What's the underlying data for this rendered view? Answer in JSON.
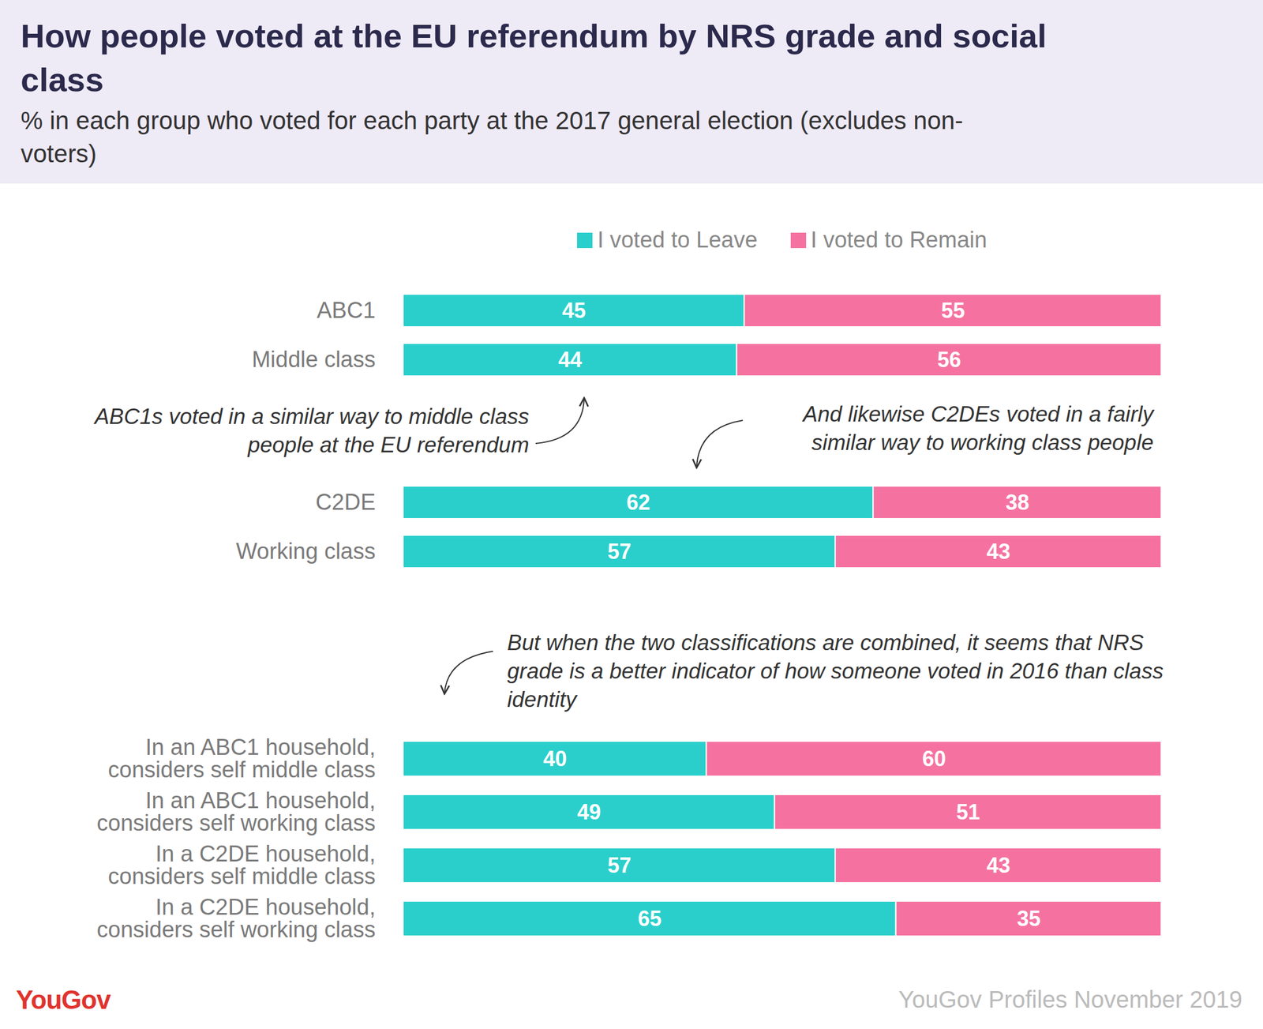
{
  "chart_data": {
    "type": "bar",
    "orientation": "horizontal",
    "stacked": true,
    "data_labels": true,
    "tick_labels": "y",
    "title": "How people voted at the EU referendum by NRS grade and social class",
    "subtitle": "% in each group who voted for each party at the 2017 general election (excludes non-voters)",
    "categories": [
      "ABC1",
      "Middle class",
      "C2DE",
      "Working class",
      "In an ABC1 household, considers self middle class",
      "In an ABC1 household, considers self working class",
      "In a C2DE household, considers self middle class",
      "In a C2DE household, considers self working class"
    ],
    "series": [
      {
        "name": "I voted to Leave",
        "color": "#2ACFCB",
        "values": [
          45,
          44,
          62,
          57,
          40,
          49,
          57,
          65
        ]
      },
      {
        "name": "I voted to Remain",
        "color": "#F572A0",
        "values": [
          55,
          56,
          38,
          43,
          60,
          51,
          43,
          35
        ]
      }
    ],
    "xlim": [
      0,
      100
    ],
    "legend": "top",
    "annotations": [
      "ABC1s voted in a similar way to middle class people at the EU referendum",
      "And likewise C2DEs voted in a fairly similar way to working class people",
      "But when the two classifications are combined, it seems that NRS grade is a better indicator of how someone voted in 2016 than class identity"
    ],
    "source": "YouGov Profiles November 2019",
    "brand": "YouGov"
  }
}
